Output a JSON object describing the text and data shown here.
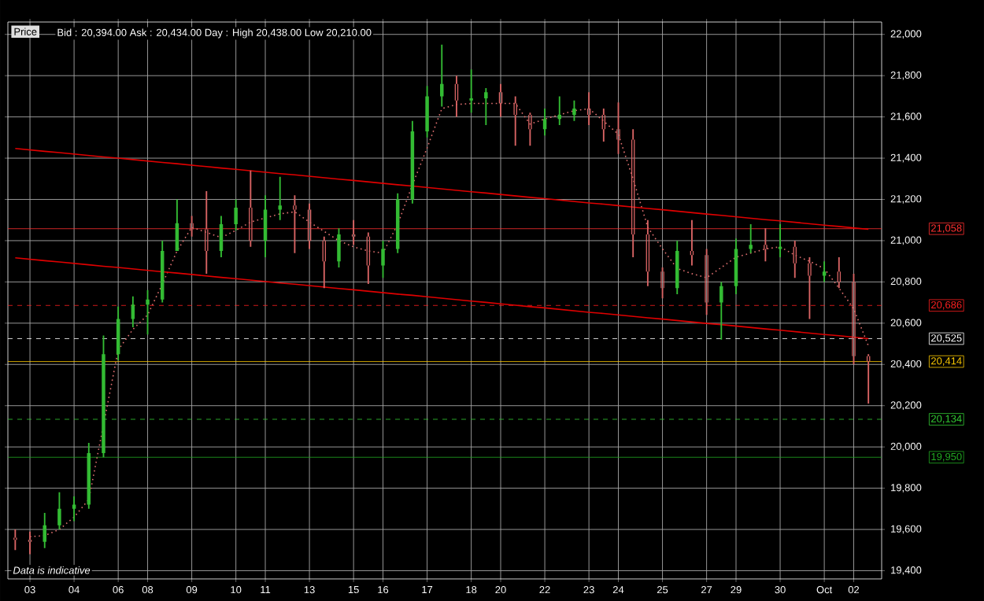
{
  "chart_data": {
    "type": "candlestick",
    "title": "Bid : 20,394.00 Ask : 20,434.00  Day : High 20,438.00 Low 20,210.00",
    "ylabel": "Price",
    "annotations": [
      "Data is indicative"
    ],
    "ref_lines": [
      {
        "axis": "y",
        "value": 21058,
        "label": "21,058",
        "color": "#ff3030",
        "line_style": "solid"
      },
      {
        "axis": "y",
        "value": 20686,
        "label": "20,686",
        "color": "#ff2020",
        "line_style": "dashed"
      },
      {
        "axis": "y",
        "value": 20525,
        "label": "20,525",
        "color": "#ffffff",
        "line_style": "dashed"
      },
      {
        "axis": "y",
        "value": 20414,
        "label": "20,414",
        "color": "#ffcc00",
        "line_style": "solid"
      },
      {
        "axis": "y",
        "value": 20134,
        "label": "20,134",
        "color": "#33cc33",
        "line_style": "dashed"
      },
      {
        "axis": "y",
        "value": 19950,
        "label": "19,950",
        "color": "#22aa22",
        "line_style": "solid"
      }
    ],
    "categories": [
      null,
      "03",
      null,
      null,
      "04",
      null,
      null,
      "06",
      null,
      "08",
      null,
      null,
      "09",
      null,
      null,
      "10",
      null,
      "11",
      null,
      null,
      "13",
      null,
      null,
      "15",
      null,
      "16",
      null,
      null,
      "17",
      null,
      null,
      "18",
      null,
      "20",
      null,
      null,
      "22",
      null,
      null,
      "23",
      null,
      "24",
      null,
      null,
      "25",
      null,
      null,
      "27",
      null,
      "29",
      null,
      null,
      "30",
      null,
      null,
      "Oct",
      null,
      "02",
      null
    ],
    "ohlc": [
      [
        19560,
        19600,
        19500,
        19550
      ],
      [
        19550,
        19590,
        19480,
        19540
      ],
      [
        19540,
        19680,
        19510,
        19620
      ],
      [
        19620,
        19780,
        19600,
        19700
      ],
      [
        19700,
        19760,
        19640,
        19720
      ],
      [
        19720,
        20020,
        19700,
        19970
      ],
      [
        19970,
        20540,
        19950,
        20450
      ],
      [
        20450,
        20680,
        20420,
        20620
      ],
      [
        20620,
        20730,
        20580,
        20690
      ],
      [
        20690,
        20760,
        20545,
        20715
      ],
      [
        20715,
        21000,
        20700,
        20950
      ],
      [
        20950,
        21200,
        20950,
        21085
      ],
      [
        21085,
        21120,
        21020,
        21055
      ],
      [
        21055,
        21240,
        20840,
        20950
      ],
      [
        20950,
        21120,
        20920,
        21080
      ],
      [
        21080,
        21200,
        21050,
        21160
      ],
      [
        21160,
        21340,
        20970,
        21000
      ],
      [
        21000,
        21220,
        20920,
        21150
      ],
      [
        21150,
        21310,
        21100,
        21170
      ],
      [
        21170,
        21220,
        20940,
        21150
      ],
      [
        21150,
        21180,
        20960,
        21000
      ],
      [
        21000,
        21020,
        20770,
        20900
      ],
      [
        20900,
        21060,
        20870,
        21030
      ],
      [
        21030,
        21100,
        20980,
        21020
      ],
      [
        21020,
        21040,
        20790,
        20880
      ],
      [
        20880,
        21000,
        20820,
        20960
      ],
      [
        20960,
        21230,
        20940,
        21200
      ],
      [
        21200,
        21580,
        21180,
        21530
      ],
      [
        21530,
        21750,
        21500,
        21700
      ],
      [
        21700,
        21950,
        21650,
        21760
      ],
      [
        21760,
        21800,
        21600,
        21680
      ],
      [
        21680,
        21830,
        21620,
        21690
      ],
      [
        21690,
        21740,
        21560,
        21720
      ],
      [
        21720,
        21760,
        21600,
        21665
      ],
      [
        21665,
        21700,
        21460,
        21610
      ],
      [
        21610,
        21620,
        21460,
        21540
      ],
      [
        21540,
        21640,
        21510,
        21590
      ],
      [
        21590,
        21700,
        21560,
        21610
      ],
      [
        21610,
        21680,
        21580,
        21640
      ],
      [
        21640,
        21720,
        21560,
        21610
      ],
      [
        21610,
        21640,
        21480,
        21540
      ],
      [
        21540,
        21670,
        21420,
        21490
      ],
      [
        21490,
        21540,
        20920,
        21030
      ],
      [
        21030,
        21100,
        20780,
        20850
      ],
      [
        20850,
        20870,
        20720,
        20770
      ],
      [
        20770,
        21000,
        20740,
        20950
      ],
      [
        20950,
        21100,
        20880,
        20930
      ],
      [
        20930,
        20960,
        20640,
        20700
      ],
      [
        20700,
        20800,
        20520,
        20780
      ],
      [
        20780,
        21010,
        20740,
        20960
      ],
      [
        20960,
        21080,
        20940,
        20980
      ],
      [
        20980,
        21060,
        20900,
        20960
      ],
      [
        20960,
        21080,
        20920,
        20970
      ],
      [
        20970,
        21000,
        20820,
        20890
      ],
      [
        20890,
        20920,
        20620,
        20830
      ],
      [
        20830,
        20900,
        20800,
        20850
      ],
      [
        20850,
        20920,
        20770,
        20800
      ],
      [
        20800,
        20840,
        20400,
        20440
      ],
      [
        20440,
        20450,
        20210,
        20415
      ]
    ],
    "colors": [
      "#d96464",
      "#d96464",
      "#33bb33",
      "#33bb33",
      "#33bb33",
      "#33bb33",
      "#33bb33",
      "#33bb33",
      "#33bb33",
      "#33bb33",
      "#33bb33",
      "#33bb33",
      "#d96464",
      "#d96464",
      "#33bb33",
      "#33bb33",
      "#d96464",
      "#33bb33",
      "#33bb33",
      "#d96464",
      "#d96464",
      "#d96464",
      "#33bb33",
      "#d96464",
      "#d96464",
      "#33bb33",
      "#33bb33",
      "#33bb33",
      "#33bb33",
      "#33bb33",
      "#d96464",
      "#33bb33",
      "#33bb33",
      "#d96464",
      "#d96464",
      "#d96464",
      "#33bb33",
      "#33bb33",
      "#33bb33",
      "#d96464",
      "#d96464",
      "#d96464",
      "#d96464",
      "#d96464",
      "#d96464",
      "#33bb33",
      "#d96464",
      "#d96464",
      "#33bb33",
      "#33bb33",
      "#33bb33",
      "#d96464",
      "#33bb33",
      "#d96464",
      "#d96464",
      "#33bb33",
      "#d96464",
      "#d96464",
      "#d96464"
    ],
    "series": [
      {
        "type": "line",
        "color": "#e07070",
        "line_style": "dotted",
        "values": [
          null,
          19565,
          19570,
          19600,
          19660,
          19745,
          null,
          20470,
          20570,
          20640,
          20790,
          20950,
          21065,
          21040,
          21015,
          21050,
          21090,
          21110,
          21130,
          21140,
          21090,
          21045,
          21000,
          20970,
          20950,
          20940,
          21080,
          21270,
          21450,
          21640,
          21660,
          21665,
          21665,
          21665,
          21665,
          21565,
          21590,
          21610,
          21630,
          21640,
          21580,
          21515,
          21300,
          21065,
          20960,
          20865,
          20840,
          20820,
          20870,
          20920,
          20940,
          20960,
          20970,
          20930,
          20900,
          20865,
          20770,
          20670,
          20490
        ]
      },
      {
        "type": "line",
        "color": "#e00000",
        "line_style": "solid",
        "values": [
          21447,
          21440,
          21433,
          21427,
          21420,
          21413,
          21406,
          21400,
          21393,
          21386,
          21379,
          21373,
          21366,
          21359,
          21352,
          21346,
          21339,
          21332,
          21325,
          21319,
          21312,
          21305,
          21298,
          21292,
          21285,
          21278,
          21271,
          21265,
          21258,
          21251,
          21244,
          21237,
          21231,
          21224,
          21217,
          21210,
          21204,
          21197,
          21190,
          21183,
          21177,
          21170,
          21163,
          21156,
          21150,
          21143,
          21136,
          21129,
          21123,
          21116,
          21109,
          21102,
          21096,
          21089,
          21082,
          21075,
          21069,
          21062,
          21055
        ]
      },
      {
        "type": "line",
        "color": "#e00000",
        "line_style": "solid",
        "values": [
          20917,
          20910,
          20903,
          20897,
          20890,
          20883,
          20876,
          20870,
          20863,
          20856,
          20849,
          20843,
          20836,
          20829,
          20822,
          20816,
          20809,
          20802,
          20795,
          20789,
          20782,
          20775,
          20768,
          20762,
          20755,
          20748,
          20741,
          20735,
          20728,
          20721,
          20714,
          20707,
          20701,
          20694,
          20687,
          20680,
          20674,
          20667,
          20660,
          20653,
          20647,
          20640,
          20633,
          20626,
          20620,
          20613,
          20606,
          20599,
          20593,
          20586,
          20579,
          20572,
          20566,
          20559,
          20552,
          20545,
          20539,
          20532,
          20525
        ]
      }
    ],
    "ylim": [
      19360,
      22060
    ],
    "yticks": [
      {
        "value": 19400,
        "label": "19,400"
      },
      {
        "value": 19600,
        "label": "19,600"
      },
      {
        "value": 19800,
        "label": "19,800"
      },
      {
        "value": 20000,
        "label": "20,000"
      },
      {
        "value": 20200,
        "label": "20,200"
      },
      {
        "value": 20400,
        "label": "20,400"
      },
      {
        "value": 20600,
        "label": "20,600"
      },
      {
        "value": 20800,
        "label": "20,800"
      },
      {
        "value": 21000,
        "label": "21,000"
      },
      {
        "value": 21200,
        "label": "21,200"
      },
      {
        "value": 21400,
        "label": "21,400"
      },
      {
        "value": 21600,
        "label": "21,600"
      },
      {
        "value": 21800,
        "label": "21,800"
      },
      {
        "value": 22000,
        "label": "22,000"
      }
    ],
    "grid": true
  }
}
